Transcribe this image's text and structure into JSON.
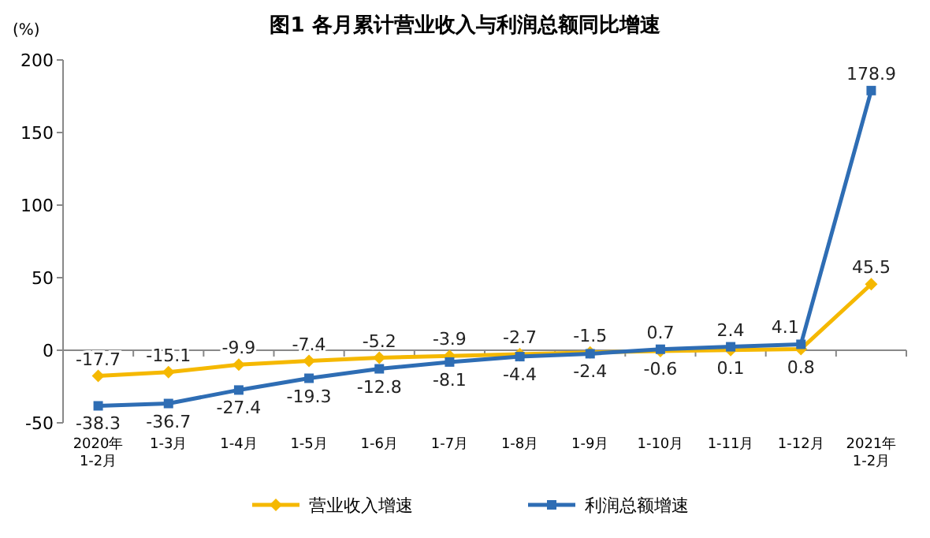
{
  "chart_data": {
    "type": "line",
    "title": "图1  各月累计营业收入与利润总额同比增速",
    "ylabel": "(%)",
    "categories": [
      "2020年\n1-2月",
      "1-3月",
      "1-4月",
      "1-5月",
      "1-6月",
      "1-7月",
      "1-8月",
      "1-9月",
      "1-10月",
      "1-11月",
      "1-12月",
      "2021年\n1-2月"
    ],
    "series": [
      {
        "name": "营业收入增速",
        "color": "#f5b800",
        "marker": "diamond",
        "values": [
          -17.7,
          -15.1,
          -9.9,
          -7.4,
          -5.2,
          -3.9,
          -2.7,
          -1.5,
          -0.6,
          0.1,
          0.8,
          45.5
        ]
      },
      {
        "name": "利润总额增速",
        "color": "#2e6db4",
        "marker": "square",
        "values": [
          -38.3,
          -36.7,
          -27.4,
          -19.3,
          -12.8,
          -8.1,
          -4.4,
          -2.4,
          0.7,
          2.4,
          4.1,
          178.9
        ]
      }
    ],
    "ylim": [
      -50,
      200
    ],
    "yticks": [
      -50,
      0,
      50,
      100,
      150,
      200
    ],
    "legend": "bottom",
    "data_labels": true
  }
}
